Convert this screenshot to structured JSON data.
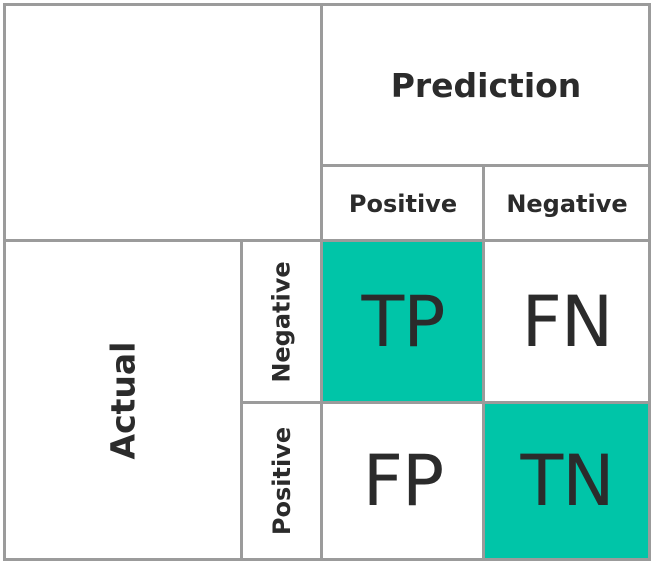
{
  "header": {
    "prediction": "Prediction",
    "pred_positive": "Positive",
    "pred_negative": "Negative"
  },
  "side": {
    "actual": "Actual",
    "actual_negative": "Negative",
    "actual_positive": "Positive"
  },
  "cells": {
    "top_left": "TP",
    "top_right": "FN",
    "bottom_left": "FP",
    "bottom_right": "TN"
  },
  "colors": {
    "highlight": "#00c5a8",
    "border": "#9b9b9b",
    "text": "#2b2b2b"
  }
}
